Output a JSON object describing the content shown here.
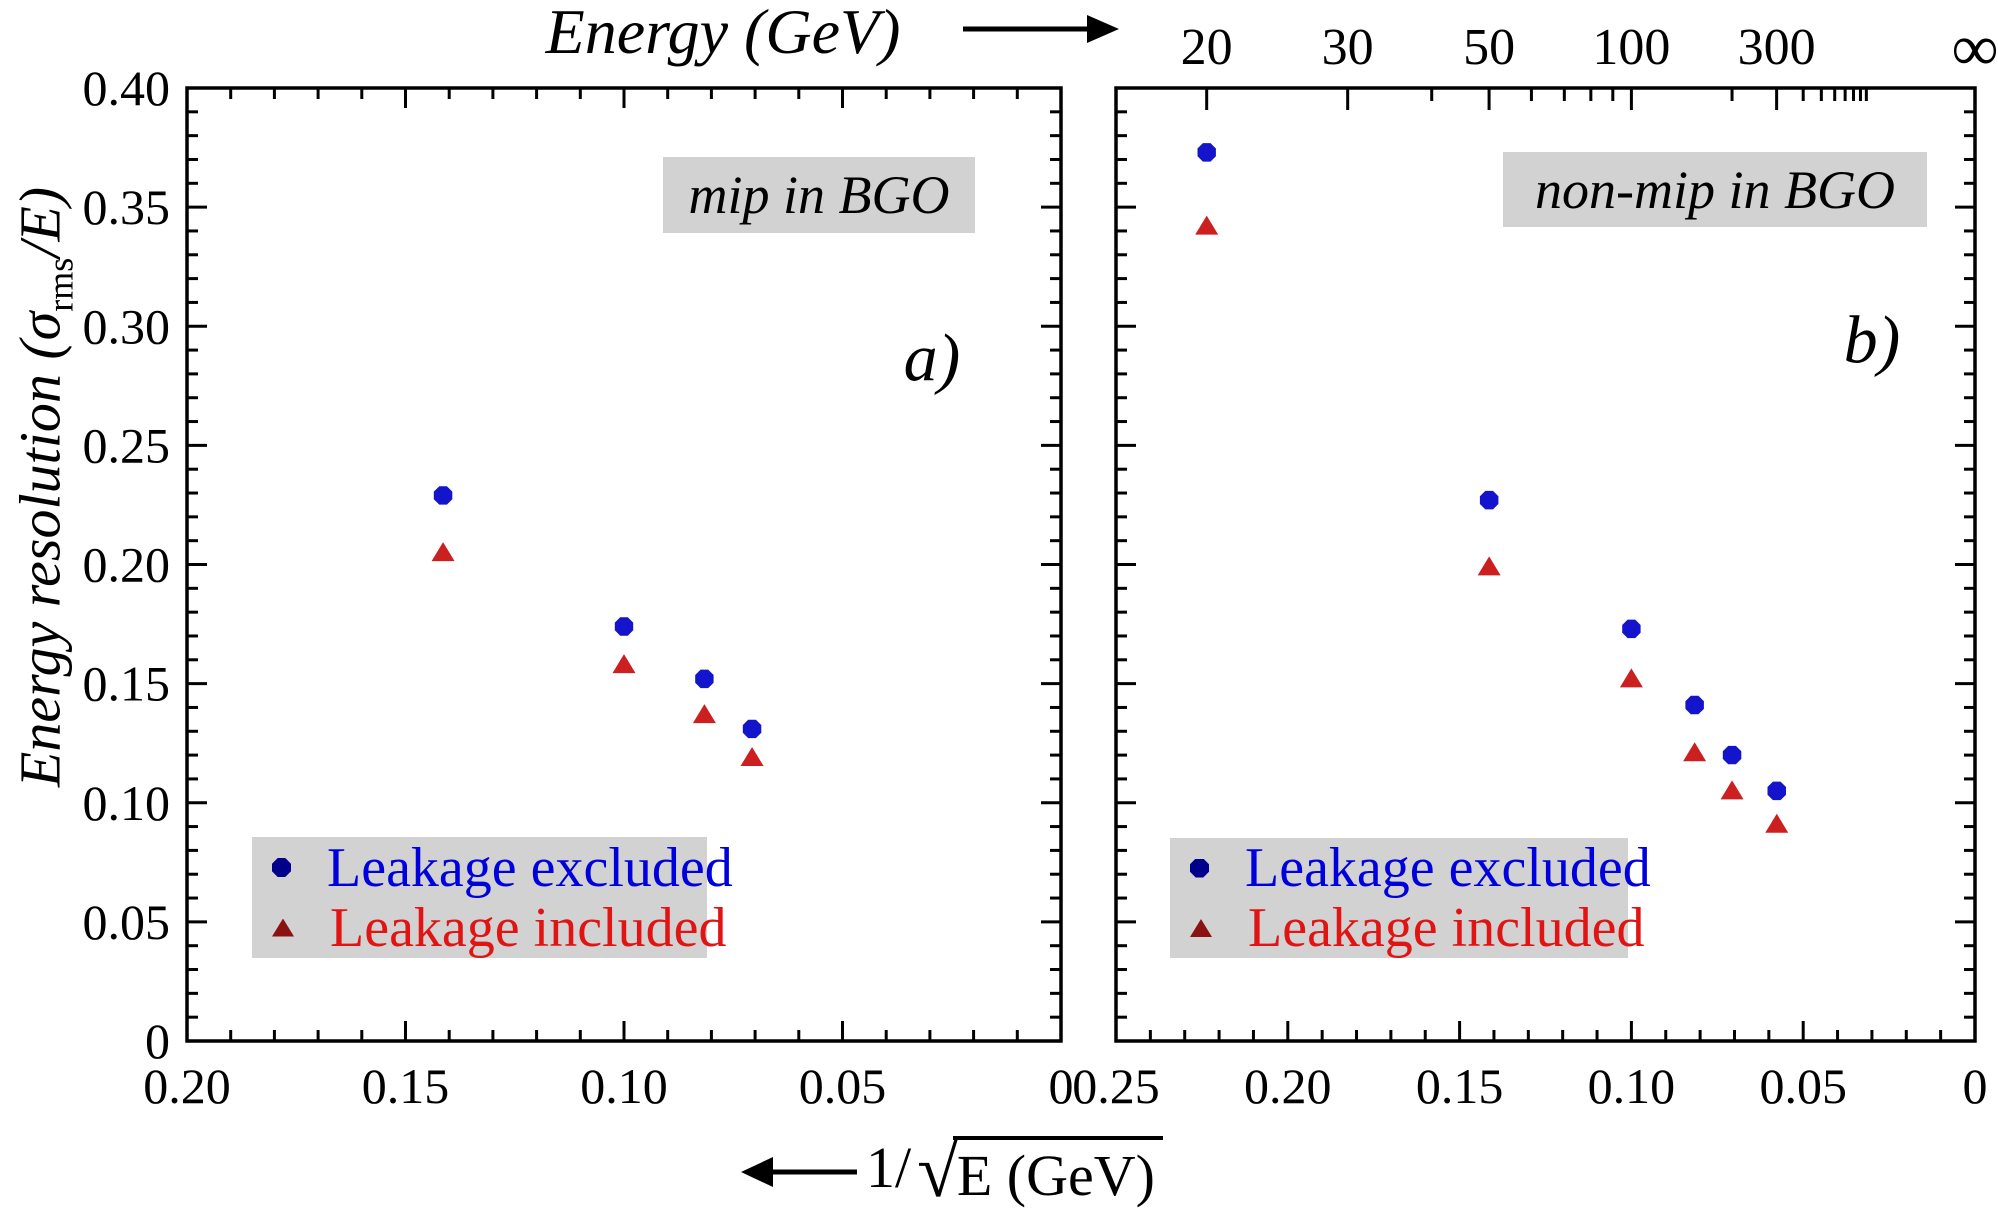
{
  "figure_labels": {
    "top_axis_label": "Energy (GeV)",
    "y_axis_label_prefix": "Energy resolution (σ",
    "y_axis_label_subscript": "rms",
    "y_axis_label_suffix": "/E)",
    "bottom_axis_prefix": "1/",
    "bottom_axis_sqrt_symbol": "√",
    "bottom_axis_radicand": "E (GeV)"
  },
  "legend": {
    "excluded": "Leakage excluded",
    "included": "Leakage included"
  },
  "colors": {
    "excluded_marker": "#1414cd",
    "included_marker": "#cc2020",
    "legend_excluded_marker": "#00008b",
    "legend_included_marker": "#8b1212",
    "legend_excluded_text": "#0000dd",
    "legend_included_text": "#e11414",
    "panel_box_bg": "#d2d2d2",
    "axis": "#000000"
  },
  "chart_data": [
    {
      "type": "scatter",
      "panel_tag": "a)",
      "title": "mip in BGO",
      "x_axis": {
        "label": "1/√E (GeV)",
        "range": [
          0.2,
          0
        ],
        "reversed": true,
        "major_tick_labels": [
          "0.20",
          "0.15",
          "0.10",
          "0.05",
          "0"
        ],
        "major_tick_values": [
          0.2,
          0.15,
          0.1,
          0.05,
          0
        ],
        "minor_step": 0.01
      },
      "y_axis": {
        "label": "Energy resolution (σrms/E)",
        "range": [
          0,
          0.4
        ],
        "major_tick_labels": [
          "0",
          "0.05",
          "0.10",
          "0.15",
          "0.20",
          "0.25",
          "0.30",
          "0.35",
          "0.40"
        ],
        "major_tick_values": [
          0,
          0.05,
          0.1,
          0.15,
          0.2,
          0.25,
          0.3,
          0.35,
          0.4
        ],
        "minor_step": 0.01
      },
      "top_axis": {
        "type": "mirror"
      },
      "series": [
        {
          "name": "Leakage excluded",
          "marker": "octagon",
          "color_key": "excluded_marker",
          "energies_gev": [
            50,
            100,
            150,
            200
          ],
          "x": [
            0.1414,
            0.1,
            0.0816,
            0.0707
          ],
          "y": [
            0.229,
            0.174,
            0.152,
            0.131
          ]
        },
        {
          "name": "Leakage included",
          "marker": "triangle",
          "color_key": "included_marker",
          "energies_gev": [
            50,
            100,
            150,
            200
          ],
          "x": [
            0.1414,
            0.1,
            0.0816,
            0.0707
          ],
          "y": [
            0.205,
            0.158,
            0.137,
            0.119
          ]
        }
      ]
    },
    {
      "type": "scatter",
      "panel_tag": "b)",
      "title": "non-mip in BGO",
      "x_axis": {
        "label": "1/√E (GeV)",
        "range": [
          0.25,
          0
        ],
        "reversed": true,
        "major_tick_labels": [
          "0.25",
          "0.20",
          "0.15",
          "0.10",
          "0.05",
          "0"
        ],
        "major_tick_values": [
          0.25,
          0.2,
          0.15,
          0.1,
          0.05,
          0
        ],
        "minor_step": 0.01
      },
      "y_axis": {
        "label": "Energy resolution (σrms/E)",
        "range": [
          0,
          0.4
        ],
        "major_tick_labels": [
          "0",
          "0.05",
          "0.10",
          "0.15",
          "0.20",
          "0.25",
          "0.30",
          "0.35",
          "0.40"
        ],
        "major_tick_values": [
          0,
          0.05,
          0.1,
          0.15,
          0.2,
          0.25,
          0.3,
          0.35,
          0.4
        ],
        "minor_step": 0.01
      },
      "top_axis": {
        "type": "energy",
        "label_texts": [
          "20",
          "30",
          "50",
          "100",
          "300",
          "∞"
        ],
        "label_values": [
          20,
          30,
          50,
          100,
          300,
          "inf"
        ],
        "minor_values": [
          40,
          60,
          70,
          80,
          90,
          200,
          400,
          500,
          600,
          700,
          800,
          900,
          1000
        ]
      },
      "series": [
        {
          "name": "Leakage excluded",
          "marker": "octagon",
          "color_key": "excluded_marker",
          "energies_gev": [
            20,
            50,
            100,
            150,
            200,
            300
          ],
          "x": [
            0.2236,
            0.1414,
            0.1,
            0.0816,
            0.0707,
            0.0577
          ],
          "y": [
            0.373,
            0.227,
            0.173,
            0.141,
            0.12,
            0.105
          ]
        },
        {
          "name": "Leakage included",
          "marker": "triangle",
          "color_key": "included_marker",
          "energies_gev": [
            20,
            50,
            100,
            150,
            200,
            300
          ],
          "x": [
            0.2236,
            0.1414,
            0.1,
            0.0816,
            0.0707,
            0.0577
          ],
          "y": [
            0.342,
            0.199,
            0.152,
            0.121,
            0.105,
            0.091
          ]
        }
      ]
    }
  ]
}
